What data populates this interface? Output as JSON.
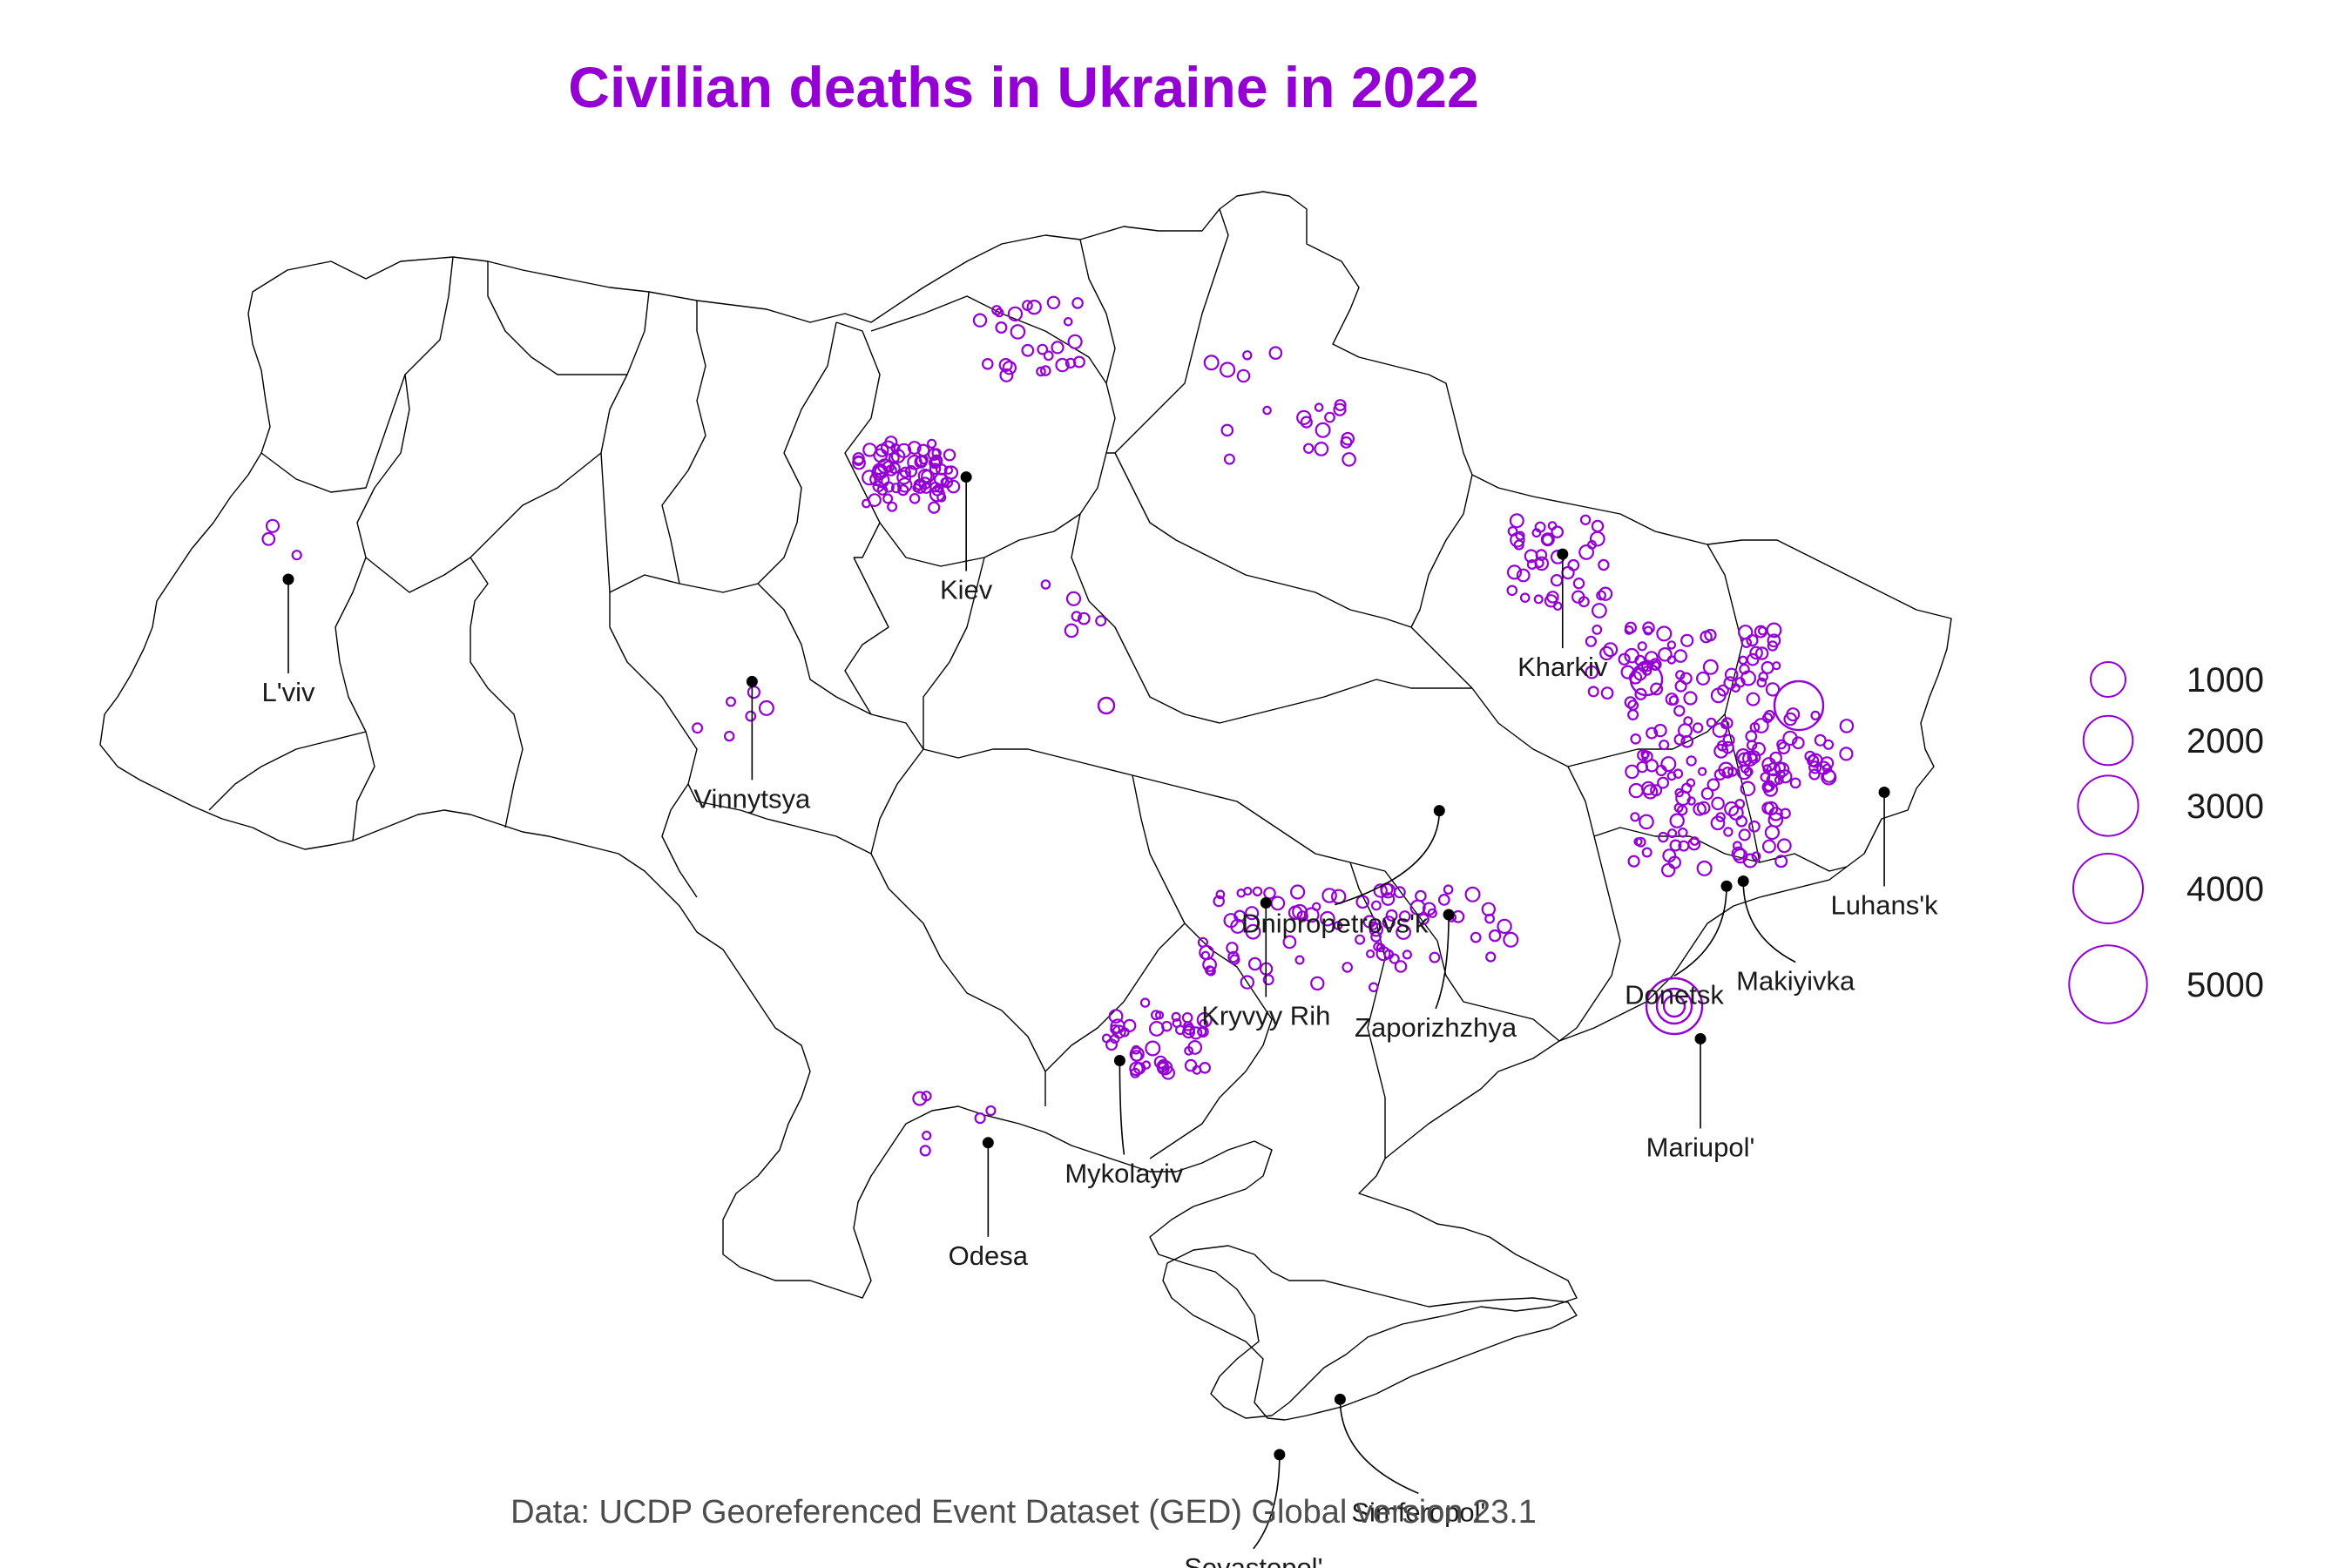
{
  "title": "Civilian deaths in Ukraine in 2022",
  "caption": "Data: UCDP Georeferenced Event Dataset (GED) Global version 23.1",
  "colors": {
    "marker": "#9400D3",
    "border": "#000000",
    "city": "#000000"
  },
  "legend": {
    "entries": [
      {
        "label": "1000",
        "value": 1000
      },
      {
        "label": "2000",
        "value": 2000
      },
      {
        "label": "3000",
        "value": 3000
      },
      {
        "label": "4000",
        "value": 4000
      },
      {
        "label": "5000",
        "value": 5000
      }
    ]
  },
  "cities": [
    {
      "name": "L'viv",
      "lon": 24.03,
      "lat": 49.84
    },
    {
      "name": "Kiev",
      "lon": 30.52,
      "lat": 50.45
    },
    {
      "name": "Vinnytsya",
      "lon": 28.47,
      "lat": 49.23
    },
    {
      "name": "Kharkiv",
      "lon": 36.23,
      "lat": 49.99
    },
    {
      "name": "Dnipropetrovs'k",
      "lon": 35.05,
      "lat": 48.46
    },
    {
      "name": "Kryvyy Rih",
      "lon": 33.39,
      "lat": 47.91
    },
    {
      "name": "Zaporizhzhya",
      "lon": 35.14,
      "lat": 47.84
    },
    {
      "name": "Donetsk",
      "lon": 37.8,
      "lat": 48.01
    },
    {
      "name": "Makiyivka",
      "lon": 37.96,
      "lat": 48.04
    },
    {
      "name": "Luhans'k",
      "lon": 39.31,
      "lat": 48.57
    },
    {
      "name": "Mariupol'",
      "lon": 37.55,
      "lat": 47.1
    },
    {
      "name": "Mykolayiv",
      "lon": 31.99,
      "lat": 46.97
    },
    {
      "name": "Odesa",
      "lon": 30.73,
      "lat": 46.48
    },
    {
      "name": "Simferopol'",
      "lon": 34.1,
      "lat": 44.95
    },
    {
      "name": "Sevastopol'",
      "lon": 33.52,
      "lat": 44.62
    }
  ]
}
